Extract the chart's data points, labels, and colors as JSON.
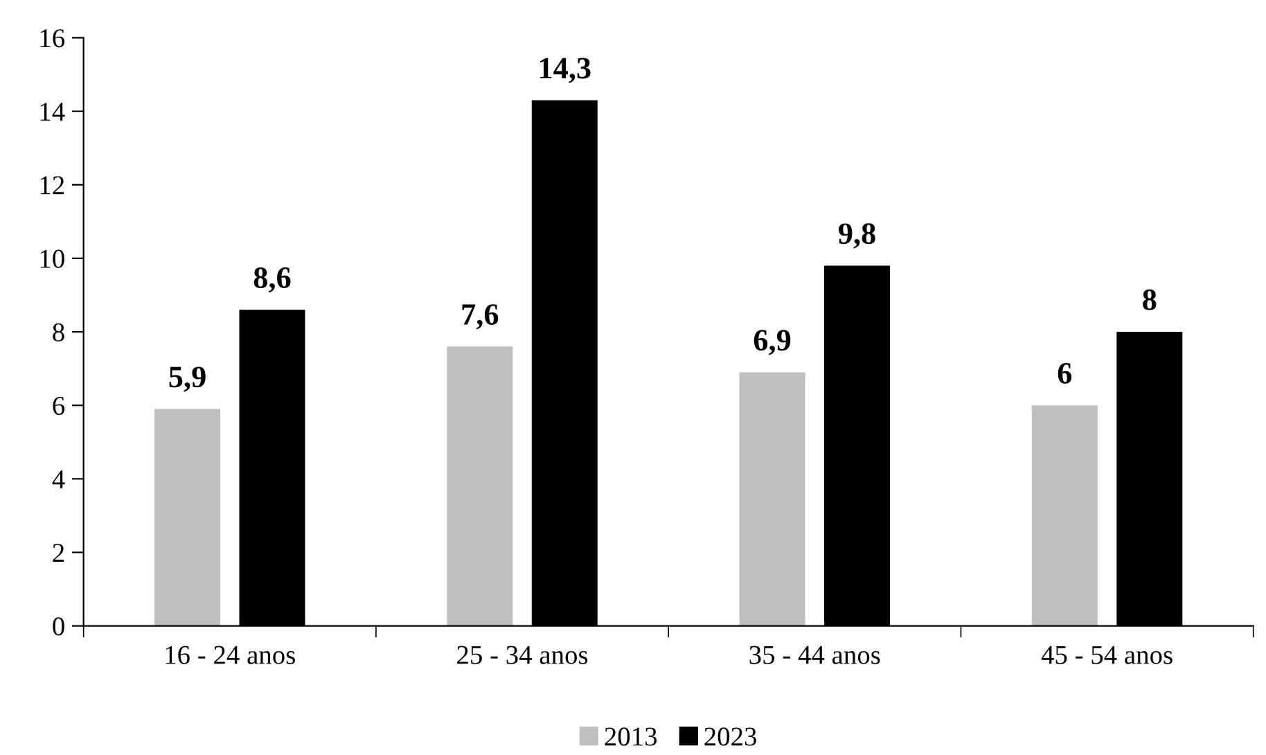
{
  "chart_data": {
    "type": "bar",
    "categories": [
      "16 - 24 anos",
      "25 - 34 anos",
      "35 - 44 anos",
      "45 - 54 anos"
    ],
    "series": [
      {
        "name": "2013",
        "color": "#bfbfbf",
        "values": [
          5.9,
          7.6,
          6.9,
          6
        ],
        "value_labels": [
          "5,9",
          "7,6",
          "6,9",
          "6"
        ]
      },
      {
        "name": "2023",
        "color": "#000000",
        "values": [
          8.6,
          14.3,
          9.8,
          8
        ],
        "value_labels": [
          "8,6",
          "14,3",
          "9,8",
          "8"
        ]
      }
    ],
    "ylim": [
      0,
      16
    ],
    "yticks": [
      0,
      2,
      4,
      6,
      8,
      10,
      12,
      14,
      16
    ],
    "grid": false,
    "legend": "bottom"
  }
}
